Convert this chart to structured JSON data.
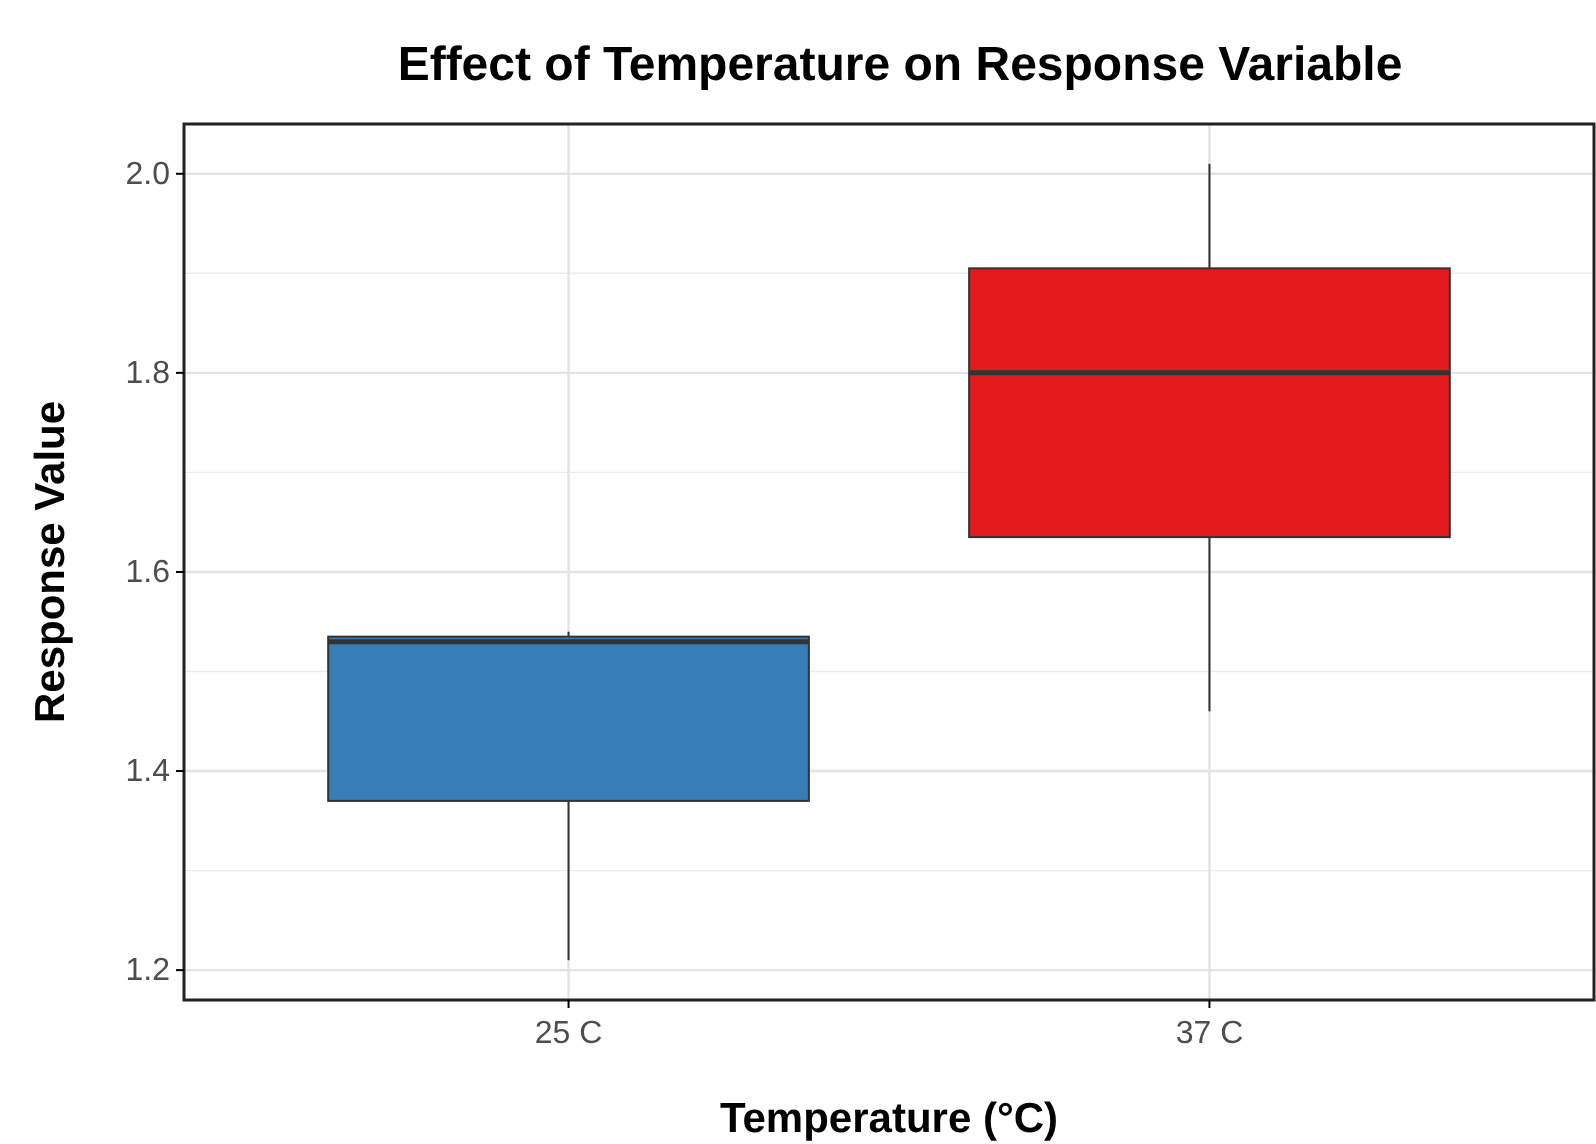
{
  "chart_data": {
    "type": "box",
    "title": "Effect of Temperature on Response Variable",
    "xlabel": "Temperature (°C)",
    "ylabel": "Response Value",
    "categories": [
      "25 C",
      "37 C"
    ],
    "boxes": [
      {
        "low": 1.21,
        "q1": 1.37,
        "median": 1.53,
        "q3": 1.535,
        "high": 1.54
      },
      {
        "low": 1.46,
        "q1": 1.635,
        "median": 1.8,
        "q3": 1.905,
        "high": 2.01
      }
    ],
    "colors": [
      "#377eb8",
      "#e41a1c"
    ],
    "ylim": [
      1.17,
      2.05
    ],
    "yticks": [
      1.2,
      1.4,
      1.6,
      1.8,
      {
        "value": 2,
        "label": "2.0"
      }
    ],
    "grid": true
  }
}
